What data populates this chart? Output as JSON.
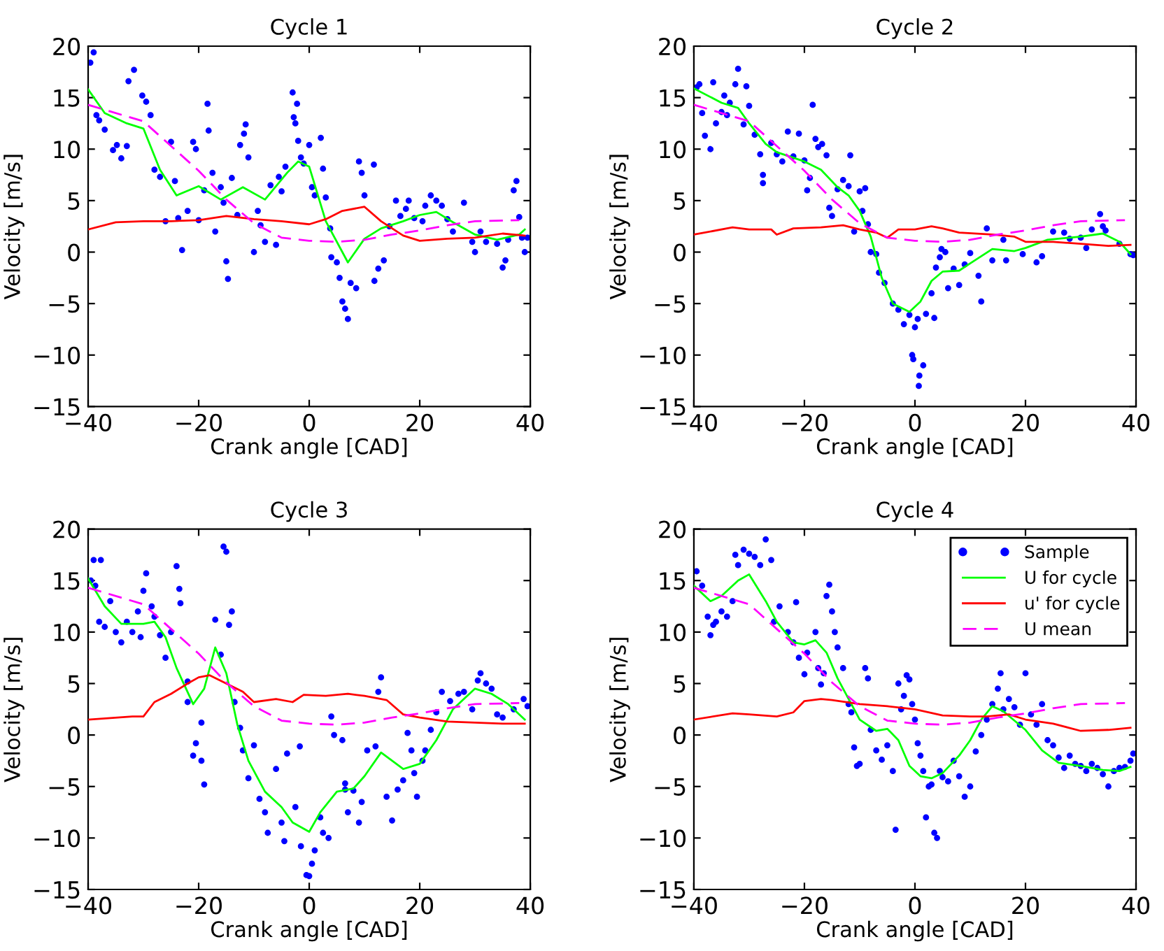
{
  "chart_data": [
    {
      "type": "line",
      "title": "Cycle 1",
      "xlabel": "Crank angle [CAD]",
      "ylabel": "Velocity [m/s]",
      "xlim": [
        -40,
        40
      ],
      "ylim": [
        -15,
        20
      ],
      "xticks": [
        -40,
        -20,
        0,
        20,
        40
      ],
      "yticks": [
        -15,
        -10,
        -5,
        0,
        5,
        10,
        15,
        20
      ],
      "legend": false,
      "series": [
        {
          "type": "scatter",
          "marker": "circle",
          "color": "#0000ff",
          "x": [
            -39.6,
            -39,
            -38.5,
            -38,
            -37,
            -35.5,
            -34.8,
            -34,
            -33,
            -32.7,
            -31.7,
            -30.2,
            -29.5,
            -28.7,
            -28,
            -27,
            -26,
            -25,
            -24.3,
            -23.7,
            -23,
            -22,
            -21,
            -20.5,
            -20,
            -19,
            -18.4,
            -18.2,
            -17.5,
            -17,
            -16,
            -15.5,
            -15,
            -14.7,
            -14,
            -13,
            -12.5,
            -11.8,
            -11.5,
            -11,
            -10,
            -9.3,
            -8.8,
            -8,
            -7,
            -6,
            -5.5,
            -5,
            -4.3,
            -3,
            -2.8,
            -2.5,
            -2.2,
            -2,
            -1.5,
            -1,
            0,
            0.5,
            1,
            2.1,
            2.5,
            3,
            3.8,
            4,
            5,
            5.5,
            6,
            6.5,
            7,
            7.5,
            8.5,
            9,
            9.5,
            10,
            11.7,
            11.8,
            12.5,
            13.5,
            14.5,
            15.7,
            16.5,
            17.5,
            18,
            19,
            20.5,
            21,
            22,
            23,
            24,
            25,
            26,
            28,
            29.5,
            30,
            31,
            32,
            34,
            35,
            35.5,
            36,
            37,
            37.5,
            38,
            38.5,
            39,
            39.5
          ],
          "values": [
            18.4,
            19.4,
            13.3,
            12.8,
            11.9,
            9.9,
            10.4,
            9.1,
            10.3,
            16.6,
            17.7,
            15.2,
            14.6,
            13.3,
            8.0,
            7.3,
            3.0,
            10.7,
            6.9,
            3.3,
            0.2,
            4.0,
            10.7,
            10.0,
            3.1,
            6.0,
            14.4,
            11.8,
            7.7,
            2.0,
            6.3,
            4.8,
            -0.9,
            -2.6,
            7.2,
            3.6,
            10.4,
            11.5,
            12.4,
            9.2,
            0,
            4.0,
            2.6,
            1.0,
            6.5,
            0.7,
            7.3,
            5.9,
            8.3,
            15.5,
            13.1,
            12.5,
            14.4,
            10.8,
            9.2,
            8.6,
            10.4,
            6.3,
            5.5,
            11.1,
            8.1,
            5.3,
            2.3,
            -0.5,
            -1.0,
            -2.5,
            -4.8,
            -5.5,
            -6.5,
            -3.0,
            -3.5,
            8.8,
            7.7,
            5.5,
            8.5,
            -2.8,
            -1.6,
            -0.8,
            2.5,
            5.0,
            3.5,
            4.2,
            5.0,
            3.3,
            3.0,
            4.5,
            5.5,
            5.0,
            4.5,
            3.2,
            2.0,
            4.8,
            1.0,
            0,
            2.0,
            1.0,
            0.8,
            -1.5,
            -0.8,
            1.2,
            6.0,
            6.9,
            3.4,
            1.4,
            0.0,
            1.4
          ]
        },
        {
          "type": "line",
          "color": "#00ff00",
          "x": [
            -40,
            -37,
            -33,
            -30,
            -27,
            -24,
            -20,
            -16,
            -12,
            -8,
            -4,
            -2,
            0,
            3,
            7,
            10,
            13,
            17,
            20,
            23,
            26,
            30,
            34,
            38,
            39
          ],
          "values": [
            15.8,
            13.5,
            12.5,
            12,
            8,
            5.5,
            6.4,
            5.1,
            6.3,
            5.1,
            7.7,
            8.8,
            8.3,
            3,
            -1,
            1.3,
            2.3,
            3,
            3.6,
            3.9,
            2.9,
            1.7,
            1.2,
            1.7,
            2.2
          ]
        },
        {
          "type": "line",
          "color": "#ff0000",
          "x": [
            -40,
            -35,
            -30,
            -25,
            -20,
            -15,
            -10,
            -5,
            0,
            3,
            6,
            10,
            13,
            17,
            20,
            25,
            30,
            35,
            39
          ],
          "values": [
            2.2,
            2.9,
            3.0,
            3.0,
            3.1,
            3.5,
            3.2,
            3.0,
            2.7,
            3.2,
            4.0,
            4.4,
            3.0,
            1.6,
            1.1,
            1.3,
            1.4,
            1.8,
            1.6
          ]
        },
        {
          "type": "line",
          "line_style": "dashed",
          "color": "#ff00ff",
          "x": [
            -40,
            -30,
            -20,
            -15,
            -10,
            -5,
            0,
            5,
            10,
            15,
            20,
            25,
            30,
            38
          ],
          "values": [
            14.3,
            12.7,
            7.9,
            5.1,
            2.8,
            1.4,
            1.1,
            1.0,
            1.2,
            1.7,
            2.1,
            2.6,
            3.0,
            3.1
          ]
        }
      ]
    },
    {
      "type": "line",
      "title": "Cycle 2",
      "xlabel": "Crank angle [CAD]",
      "ylabel": "Velocity [m/s]",
      "xlim": [
        -40,
        40
      ],
      "ylim": [
        -15,
        20
      ],
      "xticks": [
        -40,
        -20,
        0,
        20,
        40
      ],
      "yticks": [
        -15,
        -10,
        -5,
        0,
        5,
        10,
        15,
        20
      ],
      "legend": false,
      "series": [
        {
          "type": "scatter",
          "marker": "circle",
          "color": "#0000ff",
          "x": [
            -39.5,
            -39,
            -38.5,
            -38,
            -37,
            -36.5,
            -36,
            -35,
            -34.5,
            -34,
            -33.5,
            -32.5,
            -32,
            -31,
            -30.5,
            -30,
            -29,
            -28,
            -27.5,
            -27.5,
            -26,
            -25,
            -24,
            -23,
            -22,
            -21,
            -20,
            -19.5,
            -19,
            -18,
            -18.5,
            -17.5,
            -16.8,
            -16,
            -15.5,
            -15,
            -14,
            -13,
            -12,
            -11.7,
            -11,
            -10,
            -9.5,
            -9,
            -8.5,
            -8,
            -7,
            -6.5,
            -5.5,
            -4,
            -3,
            -2,
            -1,
            -0.5,
            -0.3,
            0,
            0.5,
            0.7,
            0.8,
            1.5,
            2,
            3,
            3.5,
            3.8,
            4.5,
            4.8,
            5.5,
            6,
            7,
            8,
            9,
            10,
            11.5,
            12,
            13,
            14,
            16,
            16.5,
            19.5,
            22,
            23,
            25,
            27,
            28,
            30,
            31,
            32,
            33.5,
            34,
            34.5,
            37,
            39,
            39.5
          ],
          "values": [
            16,
            16.3,
            13.5,
            11.3,
            10,
            16.5,
            12.5,
            13.6,
            15.2,
            13.3,
            14.5,
            16.3,
            17.8,
            12.4,
            16.1,
            14.2,
            11.4,
            9.5,
            7.5,
            6.7,
            10.6,
            9.5,
            8.8,
            11.7,
            9.3,
            11.5,
            8.9,
            6.0,
            7.2,
            11.0,
            14.3,
            10.2,
            10.5,
            9.4,
            4.3,
            3.5,
            6.1,
            7.0,
            6.4,
            9.4,
            2.0,
            5.9,
            4.0,
            6.2,
            2.7,
            0,
            -0.2,
            -2,
            -3,
            -5,
            -5.6,
            -7,
            -6.1,
            -10,
            -10.4,
            -7.3,
            -6.5,
            -13,
            -12,
            -11,
            -6,
            -4,
            -6.4,
            -1.5,
            -0.5,
            0.3,
            0,
            -3.5,
            -1.6,
            -3.2,
            -1.2,
            -0.1,
            -2.3,
            -4.8,
            2.3,
            -0.8,
            1.2,
            -0.8,
            -0.2,
            -1.0,
            -0.4,
            2.0,
            1.9,
            1.3,
            1.4,
            0.4,
            2.2,
            3.7,
            2.5,
            2.1,
            0.8,
            -0.2,
            -0.3
          ]
        },
        {
          "type": "line",
          "color": "#00ff00",
          "x": [
            -40,
            -35,
            -32,
            -30,
            -27,
            -25,
            -20,
            -17,
            -14,
            -12,
            -10,
            -8,
            -6,
            -4,
            -1,
            1,
            3,
            5,
            8,
            10,
            14,
            18,
            20,
            24,
            30,
            34,
            37,
            39
          ],
          "values": [
            15.9,
            14.5,
            14,
            12.5,
            10.5,
            9.7,
            8.8,
            8.0,
            6.3,
            5.5,
            4.0,
            1.5,
            -2.5,
            -5.0,
            -5.8,
            -4.8,
            -2.8,
            -1.9,
            -1.8,
            -1.1,
            0.3,
            0.1,
            0.4,
            1.2,
            1.5,
            1.8,
            1.0,
            -0.2
          ]
        },
        {
          "type": "line",
          "color": "#ff0000",
          "x": [
            -40,
            -33,
            -30,
            -26,
            -25,
            -22,
            -17,
            -13,
            -10,
            -7,
            -5,
            -3,
            0,
            3,
            5,
            8,
            14,
            18,
            20,
            25,
            30,
            35,
            39
          ],
          "values": [
            1.7,
            2.4,
            2.2,
            2.2,
            1.7,
            2.3,
            2.4,
            2.6,
            2.2,
            1.9,
            1.4,
            2.2,
            2.2,
            2.5,
            2.3,
            1.9,
            1.7,
            1.5,
            1.0,
            1.0,
            0.8,
            0.6,
            0.7
          ]
        },
        {
          "type": "line",
          "line_style": "dashed",
          "color": "#ff00ff",
          "x": [
            -40,
            -30,
            -20,
            -15,
            -10,
            -5,
            0,
            5,
            10,
            15,
            20,
            25,
            30,
            38
          ],
          "values": [
            14.3,
            12.7,
            7.9,
            5.1,
            2.8,
            1.4,
            1.1,
            1.0,
            1.2,
            1.7,
            2.1,
            2.6,
            3.0,
            3.1
          ]
        }
      ]
    },
    {
      "type": "line",
      "title": "Cycle 3",
      "xlabel": "Crank angle [CAD]",
      "ylabel": "Velocity [m/s]",
      "xlim": [
        -40,
        40
      ],
      "ylim": [
        -15,
        20
      ],
      "xticks": [
        -40,
        -20,
        0,
        20,
        40
      ],
      "yticks": [
        -15,
        -10,
        -5,
        0,
        5,
        10,
        15,
        20
      ],
      "legend": false,
      "series": [
        {
          "type": "scatter",
          "marker": "circle",
          "color": "#0000ff",
          "x": [
            -39.5,
            -39,
            -38.7,
            -38,
            -37.7,
            -37,
            -36,
            -35,
            -34,
            -33,
            -32,
            -31,
            -30.5,
            -30,
            -29.5,
            -28.5,
            -28,
            -27,
            -26,
            -25,
            -24,
            -23.5,
            -23.3,
            -22,
            -22,
            -21,
            -20.5,
            -19.5,
            -19.5,
            -19,
            -17,
            -16,
            -15.5,
            -15,
            -14.5,
            -14,
            -13.5,
            -12.5,
            -12,
            -11,
            -10,
            -9,
            -8,
            -7.5,
            -6,
            -5,
            -4.5,
            -4,
            -2.5,
            -1.7,
            -1.5,
            -0.5,
            0,
            0.5,
            1,
            2,
            2.5,
            3.5,
            4,
            4.5,
            6,
            6.5,
            6.5,
            7,
            8,
            9,
            9.5,
            10.5,
            12,
            12.5,
            13,
            14,
            15,
            16,
            17,
            17.8,
            18.5,
            19,
            19.5,
            20.5,
            21,
            22,
            23,
            24,
            25.5,
            27,
            28,
            29.5,
            30.5,
            31,
            32,
            33,
            34,
            35,
            37,
            38.8,
            39.5
          ],
          "values": [
            15,
            17,
            14.5,
            11,
            17,
            10.5,
            13,
            10,
            9,
            11,
            10,
            12,
            9.5,
            14,
            15.7,
            12.5,
            11.5,
            9.7,
            7.5,
            10,
            16.4,
            14.2,
            12.8,
            5.2,
            3.2,
            -2,
            -0.8,
            -2.5,
            1.2,
            -4.8,
            11.2,
            7.8,
            18.3,
            17.8,
            10.7,
            12,
            3.2,
            0.7,
            -1.5,
            -4.2,
            -1,
            -6.2,
            -7.5,
            -9.5,
            -3.3,
            -8.5,
            -10.3,
            -1.8,
            -7,
            -1.1,
            -10.8,
            -13.6,
            -13.7,
            -12.5,
            -11.2,
            -8,
            -9.5,
            -10,
            1.8,
            0,
            -0.5,
            -4.7,
            -5.3,
            -7.5,
            -5.4,
            -8.5,
            -6.5,
            -1.5,
            -1.1,
            4.2,
            5.6,
            -6,
            -8.3,
            -5.3,
            -4.4,
            0.2,
            -1.5,
            -3.7,
            -6,
            -2.5,
            -1.5,
            0.5,
            2.2,
            4.2,
            3.3,
            4,
            4.2,
            2.5,
            5.3,
            6,
            5,
            4.5,
            2,
            1.7,
            2.5,
            3.5,
            2.8
          ]
        },
        {
          "type": "line",
          "color": "#00ff00",
          "x": [
            -40,
            -37,
            -34,
            -30,
            -28,
            -26,
            -24,
            -21,
            -19,
            -17,
            -15,
            -13,
            -11,
            -8,
            -5,
            -3,
            0,
            2,
            5,
            8,
            10,
            13,
            17,
            20,
            23,
            26,
            30,
            33,
            36,
            39
          ],
          "values": [
            15.2,
            12.5,
            10.8,
            10.8,
            11,
            9.5,
            6.5,
            3.0,
            4.5,
            8.5,
            6.0,
            1.0,
            -2.5,
            -5.5,
            -7,
            -8.5,
            -9.4,
            -7.5,
            -5.5,
            -5.2,
            -4,
            -1.7,
            -3.3,
            -2.8,
            -0.5,
            2.5,
            4.5,
            4.0,
            3.0,
            1.5
          ]
        },
        {
          "type": "line",
          "color": "#ff0000",
          "x": [
            -40,
            -32,
            -30,
            -28,
            -25,
            -22,
            -20,
            -18,
            -15,
            -12,
            -10,
            -6,
            -3,
            -1,
            3,
            7,
            10,
            14,
            17,
            20,
            25,
            30,
            35,
            39
          ],
          "values": [
            1.5,
            1.8,
            1.8,
            3.2,
            4.0,
            5.0,
            5.6,
            5.8,
            5.0,
            4.2,
            3.2,
            3.5,
            3.2,
            3.9,
            3.8,
            4.0,
            3.8,
            3.4,
            2.0,
            1.7,
            1.3,
            1.2,
            1.1,
            1.1
          ]
        },
        {
          "type": "line",
          "line_style": "dashed",
          "color": "#ff00ff",
          "x": [
            -40,
            -30,
            -20,
            -15,
            -10,
            -5,
            0,
            5,
            10,
            15,
            20,
            25,
            30,
            38
          ],
          "values": [
            14.3,
            12.7,
            7.9,
            5.1,
            2.8,
            1.4,
            1.1,
            1.0,
            1.2,
            1.7,
            2.1,
            2.6,
            3.0,
            3.1
          ]
        }
      ]
    },
    {
      "type": "line",
      "title": "Cycle 4",
      "xlabel": "Crank angle [CAD]",
      "ylabel": "Velocity [m/s]",
      "xlim": [
        -40,
        40
      ],
      "ylim": [
        -15,
        20
      ],
      "xticks": [
        -40,
        -20,
        0,
        20,
        40
      ],
      "yticks": [
        -15,
        -10,
        -5,
        0,
        5,
        10,
        15,
        20
      ],
      "legend": "top right",
      "series": [
        {
          "name": "Sample",
          "type": "scatter",
          "marker": "circle",
          "color": "#0000ff",
          "x": [
            -39.5,
            -38.5,
            -37.5,
            -37,
            -36.5,
            -36,
            -35,
            -34,
            -33,
            -32.5,
            -32,
            -31,
            -30,
            -29,
            -28,
            -27,
            -26,
            -25.5,
            -24.5,
            -23,
            -22,
            -21.5,
            -21,
            -20,
            -19.5,
            -18,
            -17.5,
            -17,
            -16.5,
            -16,
            -15.5,
            -15,
            -14.5,
            -14,
            -13,
            -12,
            -11.5,
            -11,
            -10.5,
            -10,
            -9,
            -8.5,
            -8,
            -7,
            -6,
            -5,
            -4,
            -3.5,
            -3,
            -2.5,
            -2,
            -1.5,
            -1,
            -0.5,
            0,
            0.5,
            1,
            1.5,
            2,
            2.5,
            3,
            3.5,
            4,
            4.5,
            5,
            6,
            7,
            8,
            9,
            10,
            11,
            12,
            13,
            14,
            15,
            15.5,
            16,
            17,
            18,
            19,
            20,
            21,
            22,
            23,
            24,
            25,
            26,
            27,
            28,
            29,
            30,
            31,
            32,
            33,
            34,
            35,
            36,
            37,
            38,
            39,
            39.5
          ],
          "values": [
            15.9,
            14.5,
            11.5,
            9.7,
            10.7,
            11,
            12,
            11.5,
            13,
            17.5,
            16.5,
            18,
            17.6,
            17.3,
            16.5,
            19,
            17,
            11,
            12.5,
            10,
            9,
            12.9,
            7.5,
            5.9,
            8,
            10,
            6.5,
            4.9,
            6,
            13.5,
            14.6,
            12,
            10,
            8.5,
            6.5,
            3,
            2.2,
            -1.2,
            -3,
            -2.8,
            6.5,
            5.5,
            0.5,
            -1.5,
            -2.4,
            -1,
            -3.5,
            -9.2,
            5,
            2.5,
            3.8,
            5.8,
            5.4,
            3,
            1.5,
            -0.8,
            -2,
            -3.5,
            -8,
            -5,
            -4.8,
            -9.5,
            -10,
            -3.5,
            -4.1,
            -4.5,
            -2.5,
            -4,
            -6,
            -5,
            -1.6,
            0,
            1.5,
            3,
            4.5,
            6,
            2.5,
            3.5,
            2.7,
            1,
            6,
            2,
            1,
            3,
            -0.5,
            -1,
            -2.2,
            -3.2,
            -2,
            -2.8,
            -3,
            -3.5,
            -2.8,
            -3.2,
            -3.8,
            -5,
            -3.5,
            -3.2,
            -3.1,
            -2.5,
            -1.8
          ]
        },
        {
          "name": "U for cycle",
          "type": "line",
          "color": "#00ff00",
          "x": [
            -40,
            -37,
            -35,
            -32,
            -30,
            -27,
            -25,
            -22,
            -20,
            -18,
            -16,
            -14,
            -12,
            -10,
            -7,
            -5,
            -3,
            -1,
            1,
            3,
            5,
            8,
            10,
            12,
            14,
            16,
            20,
            23,
            26,
            30,
            34,
            37,
            39
          ],
          "values": [
            14.5,
            13,
            13.5,
            15,
            15.6,
            13,
            11,
            9,
            8.8,
            9.2,
            8.0,
            5.5,
            3.5,
            1.5,
            0.4,
            0.6,
            -0.5,
            -3,
            -4,
            -4.2,
            -3.7,
            -2,
            -0.5,
            1.5,
            2.8,
            2.3,
            0.5,
            -1.5,
            -2.7,
            -3,
            -3.4,
            -3.5,
            -3.1
          ]
        },
        {
          "name": "u' for cycle",
          "type": "line",
          "color": "#ff0000",
          "x": [
            -40,
            -33,
            -30,
            -25,
            -22,
            -20,
            -17,
            -15,
            -10,
            -5,
            0,
            5,
            10,
            13,
            17,
            20,
            25,
            30,
            35,
            39
          ],
          "values": [
            1.5,
            2.1,
            2.0,
            1.8,
            2.2,
            3.3,
            3.5,
            3.4,
            3.0,
            2.8,
            2.5,
            1.9,
            1.8,
            1.8,
            2.0,
            1.5,
            1.1,
            0.4,
            0.5,
            0.7
          ]
        },
        {
          "name": "U mean",
          "type": "line",
          "line_style": "dashed",
          "color": "#ff00ff",
          "x": [
            -40,
            -30,
            -20,
            -15,
            -10,
            -5,
            0,
            5,
            10,
            15,
            20,
            25,
            30,
            38
          ],
          "values": [
            14.3,
            12.7,
            7.9,
            5.1,
            2.8,
            1.4,
            1.1,
            1.0,
            1.2,
            1.7,
            2.1,
            2.6,
            3.0,
            3.1
          ]
        }
      ]
    }
  ]
}
